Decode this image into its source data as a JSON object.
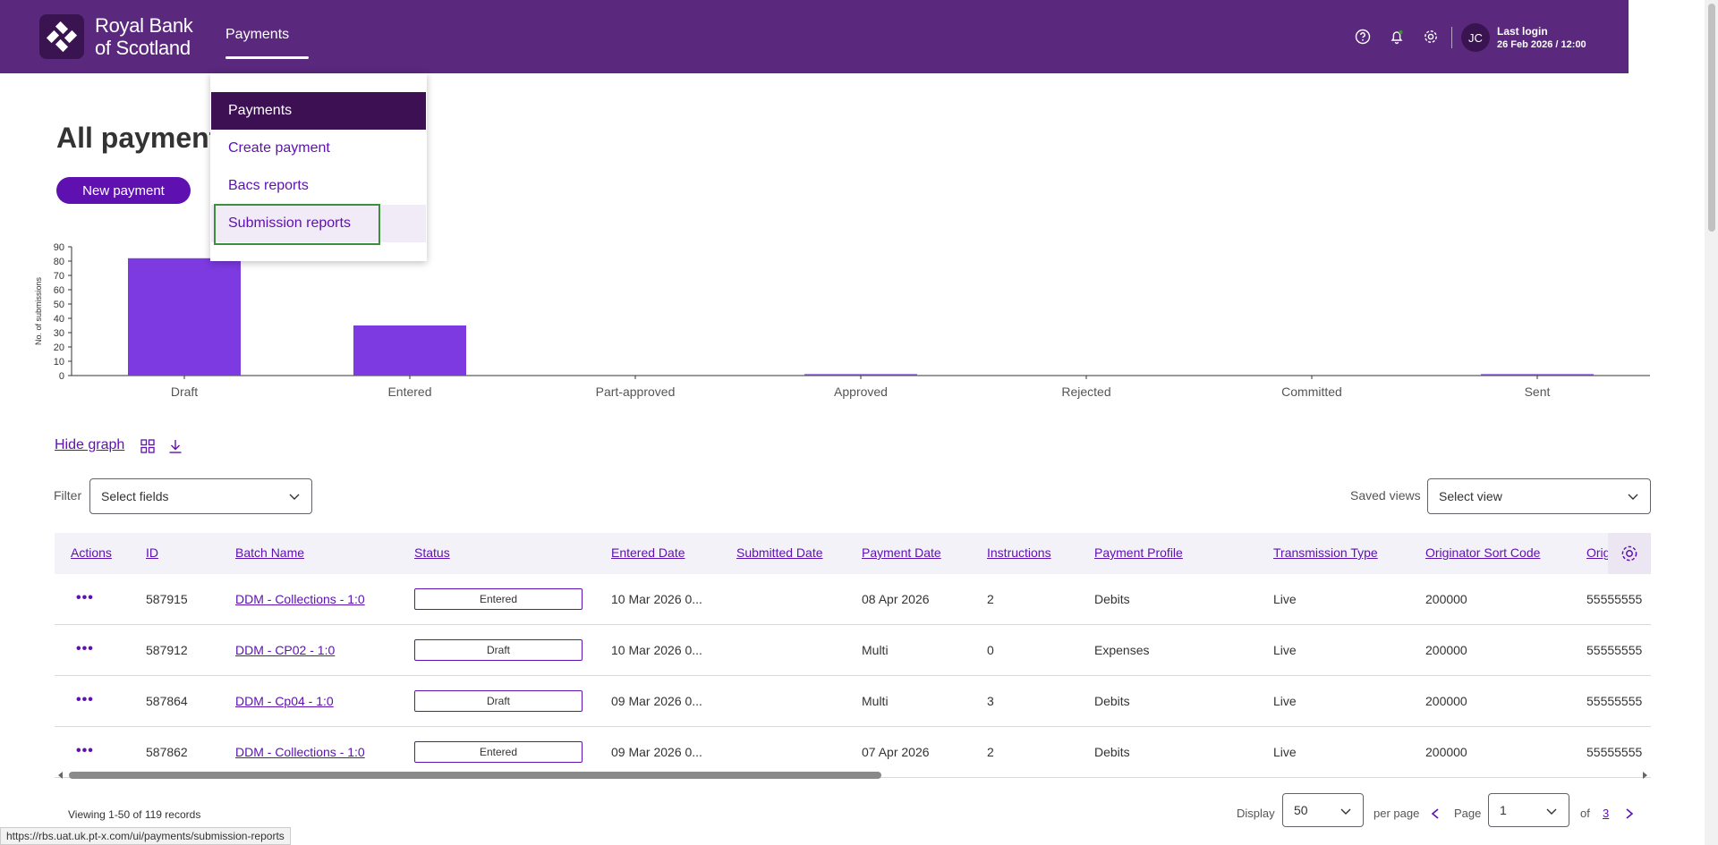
{
  "header": {
    "brand_line1": "Royal Bank",
    "brand_line2": "of Scotland",
    "nav_tab": "Payments",
    "last_login_label": "Last login",
    "last_login_value": "26 Feb 2026 / 12:00",
    "avatar_initials": "JC",
    "icons": [
      "help-icon",
      "bell-icon",
      "gear-icon"
    ]
  },
  "dropdown": {
    "items": [
      {
        "label": "Payments"
      },
      {
        "label": "Create payment"
      },
      {
        "label": "Bacs reports"
      },
      {
        "label": "Submission reports"
      }
    ]
  },
  "main": {
    "title": "All payments",
    "new_payment_label": "New payment",
    "hide_graph_label": "Hide graph"
  },
  "chart_data": {
    "type": "bar",
    "ylabel": "No. of submissions",
    "ylim": [
      0,
      90
    ],
    "yticks": [
      0,
      10,
      20,
      30,
      40,
      50,
      60,
      70,
      80,
      90
    ],
    "categories": [
      "Draft",
      "Entered",
      "Part-approved",
      "Approved",
      "Rejected",
      "Committed",
      "Sent"
    ],
    "values": [
      82,
      35,
      0,
      1,
      0,
      0,
      1
    ],
    "color": "#7c3ae0"
  },
  "filter": {
    "label": "Filter",
    "placeholder": "Select fields",
    "saved_views_label": "Saved views",
    "saved_views_placeholder": "Select view"
  },
  "table": {
    "headers": [
      "Actions",
      "ID",
      "Batch Name",
      "Status",
      "Entered Date",
      "Submitted Date",
      "Payment Date",
      "Instructions",
      "Payment Profile",
      "Transmission Type",
      "Originator Sort Code",
      "Orig"
    ],
    "rows": [
      {
        "actions": "•••",
        "id": "587915",
        "batch": "DDM - Collections - 1:0",
        "status": "Entered",
        "entered": "10 Mar 2026 0...",
        "submitted": "",
        "payment_date": "08 Apr 2026",
        "instructions": "2",
        "profile": "Debits",
        "transmission": "Live",
        "sort_code": "200000",
        "orig": "55555555"
      },
      {
        "actions": "•••",
        "id": "587912",
        "batch": "DDM - CP02 - 1:0",
        "status": "Draft",
        "entered": "10 Mar 2026 0...",
        "submitted": "",
        "payment_date": "Multi",
        "instructions": "0",
        "profile": "Expenses",
        "transmission": "Live",
        "sort_code": "200000",
        "orig": "55555555"
      },
      {
        "actions": "•••",
        "id": "587864",
        "batch": "DDM - Cp04 - 1:0",
        "status": "Draft",
        "entered": "09 Mar 2026 0...",
        "submitted": "",
        "payment_date": "Multi",
        "instructions": "3",
        "profile": "Debits",
        "transmission": "Live",
        "sort_code": "200000",
        "orig": "55555555"
      },
      {
        "actions": "•••",
        "id": "587862",
        "batch": "DDM - Collections - 1:0",
        "status": "Entered",
        "entered": "09 Mar 2026 0...",
        "submitted": "",
        "payment_date": "07 Apr 2026",
        "instructions": "2",
        "profile": "Debits",
        "transmission": "Live",
        "sort_code": "200000",
        "orig": "55555555"
      }
    ]
  },
  "pagination": {
    "viewing": "Viewing 1-50 of 119 records",
    "display_label": "Display",
    "per_page_value": "50",
    "per_page_label": "per page",
    "page_label": "Page",
    "page_value": "1",
    "of_label": "of",
    "total_pages": "3"
  },
  "status_url": "https://rbs.uat.uk.pt-x.com/ui/payments/submission-reports"
}
